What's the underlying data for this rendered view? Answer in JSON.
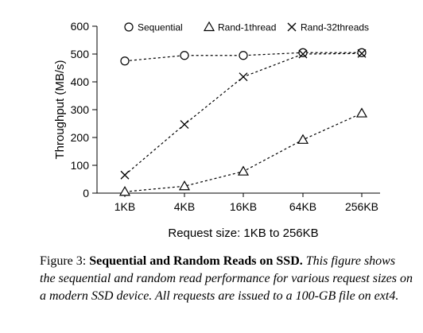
{
  "chart_data": {
    "type": "line",
    "categories": [
      "1KB",
      "4KB",
      "16KB",
      "64KB",
      "256KB"
    ],
    "ylabel": "Throughput (MB/s)",
    "xlabel": "Request size: 1KB to 256KB",
    "ylim": [
      0,
      600
    ],
    "yticks": [
      "0",
      "100",
      "200",
      "300",
      "400",
      "500",
      "600"
    ],
    "grid": false,
    "legend_position": "top",
    "series": [
      {
        "name": "Sequential",
        "marker": "circle",
        "values": [
          475,
          495,
          495,
          505,
          505
        ]
      },
      {
        "name": "Rand-1thread",
        "marker": "triangle",
        "values": [
          5,
          25,
          78,
          192,
          287
        ]
      },
      {
        "name": "Rand-32threads",
        "marker": "x",
        "values": [
          65,
          247,
          418,
          500,
          502
        ]
      }
    ]
  },
  "caption": {
    "label": "Figure 3:",
    "title": "Sequential and Random Reads on SSD.",
    "body": "This figure shows the sequential and random read performance for various request sizes on a modern SSD device. All requests are issued to a 100-GB file on ext4."
  }
}
